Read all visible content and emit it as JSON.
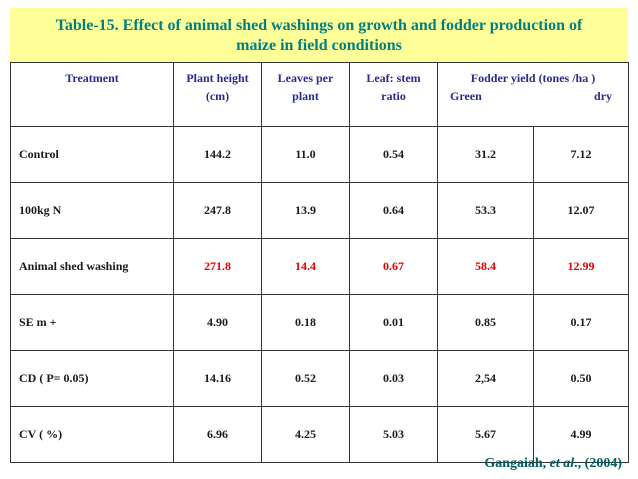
{
  "title": {
    "line1": "Table-15. Effect of animal shed washings on growth and fodder production of",
    "line2": "maize in field conditions"
  },
  "headers": {
    "treatment": "Treatment",
    "plant_height": [
      "Plant height",
      "(cm)"
    ],
    "leaves": [
      "Leaves per",
      "plant"
    ],
    "leaf_stem": [
      "Leaf: stem",
      "ratio"
    ],
    "fodder_yield": "Fodder yield (tones /ha )",
    "green": "Green",
    "dry": "dry"
  },
  "rows": [
    {
      "label": "Control",
      "values": [
        "144.2",
        "11.0",
        "0.54",
        "31.2",
        "7.12"
      ]
    },
    {
      "label": "100kg  N",
      "values": [
        "247.8",
        "13.9",
        "0.64",
        "53.3",
        "12.07"
      ]
    },
    {
      "label": "Animal shed washing",
      "values": [
        "271.8",
        "14.4",
        "0.67",
        "58.4",
        "12.99"
      ]
    },
    {
      "label": "SE m +",
      "values": [
        "4.90",
        "0.18",
        "0.01",
        "0.85",
        "0.17"
      ]
    },
    {
      "label": "CD ( P= 0.05)",
      "values": [
        "14.16",
        "0.52",
        "0.03",
        "2,54",
        "0.50"
      ]
    },
    {
      "label": "CV ( %)",
      "values": [
        "6.96",
        "4.25",
        "5.03",
        "5.67",
        "4.99"
      ]
    }
  ],
  "citation": {
    "author": "Gangaiah, ",
    "etal": "et al",
    "rest": "., (2004)"
  },
  "colors": {
    "title_bg": "#ffff99",
    "title_text": "#008080",
    "header_text": "#2b2b8f",
    "highlight_text": "#e60000"
  }
}
